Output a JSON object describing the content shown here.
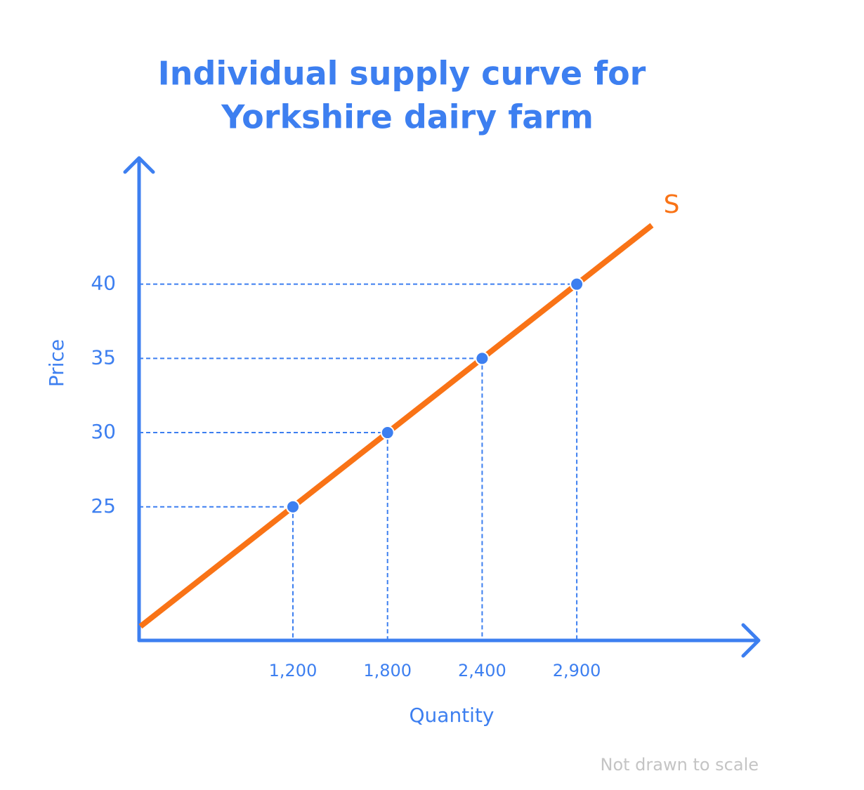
{
  "chart_data": {
    "type": "line",
    "title": [
      "Individual supply curve for",
      "Yorkshire dairy farm"
    ],
    "xlabel": "Quantity",
    "ylabel": "Price",
    "note": "Not drawn to scale",
    "categories": [
      "1,200",
      "1,800",
      "2,400",
      "2,900"
    ],
    "series": [
      {
        "name": "S",
        "color": "#f97316",
        "values": [
          25,
          30,
          35,
          40
        ]
      }
    ],
    "ylim": [
      16,
      48.5
    ],
    "yticks": [
      25,
      30,
      35,
      40
    ],
    "axis_color": "#3d7ff0",
    "point_color": "#3d7ff0",
    "note_color": "#c4c4c4"
  }
}
